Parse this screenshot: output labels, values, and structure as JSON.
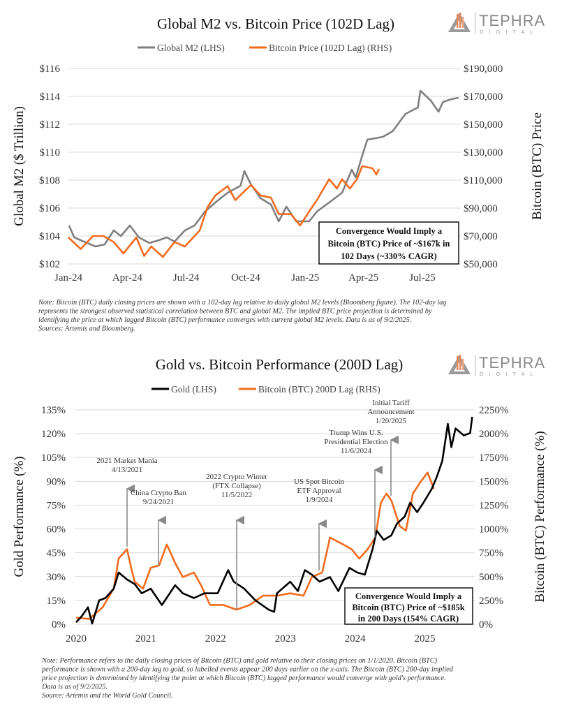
{
  "colors": {
    "m2": "#7f7f7f",
    "btc": "#f26b1d",
    "gold": "#000000",
    "logo_accent": "#e8875a"
  },
  "logo": {
    "name": "TEPHRA",
    "sub": "DIGITAL",
    "icon": "triangle-logo-icon"
  },
  "chart_data": [
    {
      "type": "line",
      "title": "Global M2 vs. Bitcoin Price (102D Lag)",
      "ylabel": "Global M2 ($ Trillion)",
      "y2label": "Bitcoin (BTC) Price",
      "legend_position": "top",
      "grid": true,
      "ylim": [
        102,
        116
      ],
      "y2lim": [
        50000,
        190000
      ],
      "xticks": [
        "Jan-24",
        "Apr-24",
        "Jul-24",
        "Oct-24",
        "Jan-25",
        "Apr-25",
        "Jul-25"
      ],
      "xtick_dates": [
        "2024-01-01",
        "2024-04-01",
        "2024-07-01",
        "2024-10-01",
        "2025-01-01",
        "2025-04-01",
        "2025-07-01"
      ],
      "yticks": [
        "$102",
        "$104",
        "$106",
        "$108",
        "$110",
        "$112",
        "$114",
        "$116"
      ],
      "y2ticks": [
        "$50,000",
        "$70,000",
        "$90,000",
        "$110,000",
        "$130,000",
        "$150,000",
        "$170,000",
        "$190,000"
      ],
      "series": [
        {
          "name": "Global M2 (LHS)",
          "axis": "left",
          "points": [
            [
              "2024-01-02",
              104.75
            ],
            [
              "2024-01-10",
              103.9
            ],
            [
              "2024-01-25",
              103.6
            ],
            [
              "2024-02-12",
              103.25
            ],
            [
              "2024-02-26",
              103.4
            ],
            [
              "2024-03-11",
              104.4
            ],
            [
              "2024-03-22",
              104.0
            ],
            [
              "2024-04-05",
              104.75
            ],
            [
              "2024-04-19",
              103.9
            ],
            [
              "2024-05-05",
              103.5
            ],
            [
              "2024-05-20",
              103.7
            ],
            [
              "2024-06-01",
              103.9
            ],
            [
              "2024-06-13",
              103.6
            ],
            [
              "2024-06-29",
              104.4
            ],
            [
              "2024-07-14",
              104.75
            ],
            [
              "2024-07-30",
              105.75
            ],
            [
              "2024-08-15",
              106.4
            ],
            [
              "2024-09-03",
              107.1
            ],
            [
              "2024-09-23",
              107.6
            ],
            [
              "2024-09-29",
              108.65
            ],
            [
              "2024-10-09",
              107.7
            ],
            [
              "2024-10-24",
              106.7
            ],
            [
              "2024-11-09",
              106.25
            ],
            [
              "2024-11-21",
              105.05
            ],
            [
              "2024-12-03",
              106.1
            ],
            [
              "2024-12-18",
              105.05
            ],
            [
              "2025-01-07",
              105.05
            ],
            [
              "2025-01-19",
              105.75
            ],
            [
              "2025-02-07",
              106.4
            ],
            [
              "2025-02-27",
              107.1
            ],
            [
              "2025-03-14",
              108.75
            ],
            [
              "2025-03-20",
              108.2
            ],
            [
              "2025-03-30",
              109.75
            ],
            [
              "2025-04-07",
              110.9
            ],
            [
              "2025-05-01",
              111.1
            ],
            [
              "2025-05-16",
              111.5
            ],
            [
              "2025-06-05",
              112.75
            ],
            [
              "2025-06-24",
              113.2
            ],
            [
              "2025-06-28",
              114.4
            ],
            [
              "2025-07-14",
              113.7
            ],
            [
              "2025-07-26",
              112.9
            ],
            [
              "2025-08-02",
              113.6
            ],
            [
              "2025-08-15",
              113.8
            ],
            [
              "2025-08-26",
              113.9
            ]
          ]
        },
        {
          "name": "Bitcoin Price (102D Lag) (RHS)",
          "axis": "right",
          "points": [
            [
              "2024-01-01",
              69000
            ],
            [
              "2024-01-20",
              60700
            ],
            [
              "2024-02-08",
              70000
            ],
            [
              "2024-02-24",
              70000
            ],
            [
              "2024-03-11",
              65700
            ],
            [
              "2024-03-26",
              57500
            ],
            [
              "2024-04-15",
              69000
            ],
            [
              "2024-04-27",
              55700
            ],
            [
              "2024-05-08",
              62500
            ],
            [
              "2024-05-26",
              55000
            ],
            [
              "2024-06-13",
              65700
            ],
            [
              "2024-06-29",
              62500
            ],
            [
              "2024-07-22",
              74000
            ],
            [
              "2024-08-03",
              90700
            ],
            [
              "2024-08-15",
              99000
            ],
            [
              "2024-09-03",
              105700
            ],
            [
              "2024-09-15",
              95700
            ],
            [
              "2024-10-09",
              106500
            ],
            [
              "2024-10-24",
              99000
            ],
            [
              "2024-11-09",
              97500
            ],
            [
              "2024-11-21",
              85700
            ],
            [
              "2024-12-10",
              85700
            ],
            [
              "2024-12-24",
              77500
            ],
            [
              "2025-01-07",
              87500
            ],
            [
              "2025-01-19",
              95700
            ],
            [
              "2025-02-07",
              110700
            ],
            [
              "2025-02-19",
              104000
            ],
            [
              "2025-02-27",
              110700
            ],
            [
              "2025-03-11",
              104000
            ],
            [
              "2025-03-22",
              110700
            ],
            [
              "2025-03-30",
              120000
            ],
            [
              "2025-04-15",
              118500
            ],
            [
              "2025-04-21",
              114000
            ],
            [
              "2025-04-25",
              118000
            ]
          ]
        }
      ],
      "annotation": [
        "Convergence Would Imply a",
        "Bitcoin (BTC) Price of ~$167k in",
        "102 Days (~330% CAGR)"
      ],
      "note": [
        "Note: Bitcoin (BTC) daily closing prices are shown with a 102-day lag relative to daily global M2 levels (Bloomberg figure). The 102-day lag",
        "represents the strongest observed statistical correlation between BTC and global M2. The implied BTC price projection is determined by",
        "identifying the price at which lagged Bitcoin (BTC) performance converges with current global M2 levels. Data is as of 9/2/2025.",
        "Sources: Artemis and Bloomberg."
      ]
    },
    {
      "type": "line",
      "title": "Gold vs. Bitcoin Performance (200D Lag)",
      "ylabel": "Gold Performance (%)",
      "y2label": "Bitcoin (BTC) Performance (%)",
      "legend_position": "top",
      "grid": true,
      "ylim": [
        0,
        135
      ],
      "y2lim": [
        0,
        2250
      ],
      "xticks": [
        "2020",
        "2021",
        "2022",
        "2023",
        "2024",
        "2025"
      ],
      "yticks": [
        "0%",
        "15%",
        "30%",
        "45%",
        "60%",
        "75%",
        "90%",
        "105%",
        "120%",
        "135%"
      ],
      "y2ticks": [
        "0%",
        "250%",
        "500%",
        "750%",
        "1000%",
        "1250%",
        "1500%",
        "1750%",
        "2000%",
        "2250%"
      ],
      "series": [
        {
          "name": "Gold (LHS)",
          "axis": "left",
          "points": [
            [
              2020.0,
              1.2
            ],
            [
              2020.08,
              5
            ],
            [
              2020.17,
              10.7
            ],
            [
              2020.23,
              0.4
            ],
            [
              2020.33,
              15
            ],
            [
              2020.42,
              16.5
            ],
            [
              2020.54,
              22.4
            ],
            [
              2020.61,
              32.6
            ],
            [
              2020.73,
              28.2
            ],
            [
              2020.84,
              25.3
            ],
            [
              2020.94,
              19.5
            ],
            [
              2021.07,
              22.4
            ],
            [
              2021.23,
              12.1
            ],
            [
              2021.42,
              24.6
            ],
            [
              2021.53,
              19.5
            ],
            [
              2021.69,
              16.5
            ],
            [
              2021.84,
              19.5
            ],
            [
              2022.03,
              19.5
            ],
            [
              2022.18,
              34.1
            ],
            [
              2022.26,
              26.8
            ],
            [
              2022.41,
              22.4
            ],
            [
              2022.57,
              15.1
            ],
            [
              2022.76,
              9.2
            ],
            [
              2022.84,
              7.8
            ],
            [
              2022.88,
              19.5
            ],
            [
              2023.07,
              26.8
            ],
            [
              2023.18,
              20.9
            ],
            [
              2023.28,
              34.1
            ],
            [
              2023.38,
              31.2
            ],
            [
              2023.49,
              26.8
            ],
            [
              2023.64,
              29.7
            ],
            [
              2023.76,
              20.9
            ],
            [
              2023.92,
              35.5
            ],
            [
              2024.03,
              32.6
            ],
            [
              2024.14,
              31.2
            ],
            [
              2024.25,
              47.2
            ],
            [
              2024.31,
              58.9
            ],
            [
              2024.41,
              53.1
            ],
            [
              2024.52,
              56
            ],
            [
              2024.6,
              63.3
            ],
            [
              2024.71,
              67.7
            ],
            [
              2024.79,
              76.5
            ],
            [
              2024.89,
              70.6
            ],
            [
              2024.98,
              76.5
            ],
            [
              2025.1,
              85.3
            ],
            [
              2025.17,
              92.6
            ],
            [
              2025.25,
              102.8
            ],
            [
              2025.33,
              126.2
            ],
            [
              2025.38,
              111.5
            ],
            [
              2025.44,
              123.3
            ],
            [
              2025.56,
              118.9
            ],
            [
              2025.65,
              120.4
            ],
            [
              2025.68,
              130.6
            ]
          ]
        },
        {
          "name": "Bitcoin (BTC) 200D Lag (RHS)",
          "axis": "right",
          "points": [
            [
              2020.0,
              68
            ],
            [
              2020.19,
              56
            ],
            [
              2020.38,
              178
            ],
            [
              2020.54,
              373
            ],
            [
              2020.61,
              690
            ],
            [
              2020.73,
              787
            ],
            [
              2020.79,
              592
            ],
            [
              2020.84,
              447
            ],
            [
              2020.96,
              373
            ],
            [
              2021.07,
              592
            ],
            [
              2021.19,
              617
            ],
            [
              2021.3,
              837
            ],
            [
              2021.42,
              642
            ],
            [
              2021.53,
              495
            ],
            [
              2021.69,
              543
            ],
            [
              2021.8,
              397
            ],
            [
              2021.92,
              202
            ],
            [
              2022.11,
              202
            ],
            [
              2022.3,
              153
            ],
            [
              2022.49,
              202
            ],
            [
              2022.68,
              300
            ],
            [
              2022.88,
              300
            ],
            [
              2023.07,
              325
            ],
            [
              2023.26,
              300
            ],
            [
              2023.38,
              495
            ],
            [
              2023.53,
              543
            ],
            [
              2023.64,
              910
            ],
            [
              2023.83,
              837
            ],
            [
              2023.95,
              787
            ],
            [
              2024.06,
              690
            ],
            [
              2024.18,
              787
            ],
            [
              2024.29,
              910
            ],
            [
              2024.37,
              1275
            ],
            [
              2024.45,
              1372
            ],
            [
              2024.52,
              1300
            ],
            [
              2024.64,
              1032
            ],
            [
              2024.73,
              982
            ],
            [
              2024.83,
              1372
            ],
            [
              2024.94,
              1495
            ],
            [
              2025.04,
              1592
            ],
            [
              2025.13,
              1422
            ]
          ]
        }
      ],
      "events": [
        {
          "lines": [
            "2021 Market Mania",
            "4/13/2021"
          ]
        },
        {
          "lines": [
            "China Crypto Ban",
            "9/24/2021"
          ]
        },
        {
          "lines": [
            "2022 Crypto Winter",
            "(FTX Collapse)",
            "11/5/2022"
          ]
        },
        {
          "lines": [
            "US Spot Bitcoin",
            "ETF Approval",
            "1/9/2024"
          ]
        },
        {
          "lines": [
            "Trump Wins U.S.",
            "Presidential Election",
            "11/6/2024"
          ]
        },
        {
          "lines": [
            "Initial Tariff",
            "Announcement",
            "1/20/2025"
          ]
        }
      ],
      "annotation": [
        "Convergence Would Imply a",
        "Bitcoin (BTC) Price of ~$185k",
        "in 200 Days (154% CAGR)"
      ],
      "note": [
        "Note: Performance refers to the daily closing prices of Bitcoin (BTC) and gold relative to their closing prices on 1/1/2020. Bitcoin (BTC)",
        "performance is shown with a 200-day lag to gold, so labelled events appear 200 days earlier on the x-axis. The Bitcoin (BTC) 200-day implied",
        "price projection is determined by identifying the point at which Bitcoin (BTC) lagged performance would converge with gold's performance.",
        "Data is as of 9/2/2025.",
        "Source: Artemis and the World Gold Council."
      ]
    }
  ]
}
